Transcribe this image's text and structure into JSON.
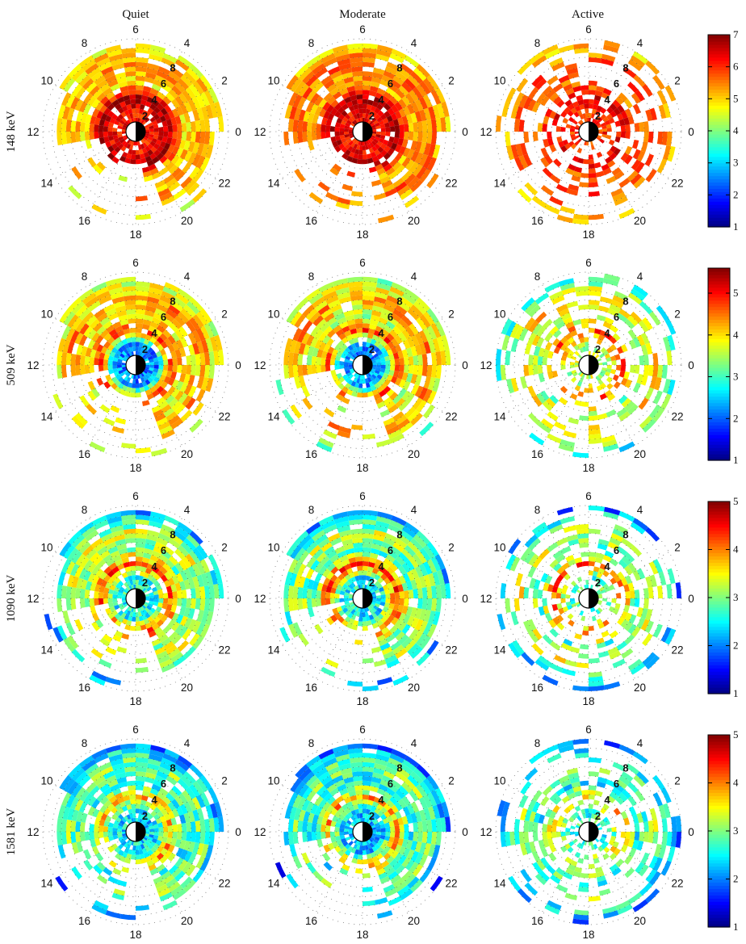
{
  "chart_data": {
    "type": "heatmap",
    "subtype": "polar-grid",
    "columns": [
      "Quiet",
      "Moderate",
      "Active"
    ],
    "rows": [
      "148 keV",
      "509 keV",
      "1090 keV",
      "1581 keV"
    ],
    "mlt_labels": [
      "0",
      "2",
      "4",
      "6",
      "8",
      "10",
      "12",
      "14",
      "16",
      "18",
      "20",
      "22"
    ],
    "mlt_label_positions_deg": [
      0,
      30,
      60,
      90,
      120,
      150,
      180,
      210,
      240,
      270,
      300,
      330
    ],
    "radial_labels": [
      "2",
      "4",
      "6",
      "8"
    ],
    "radial_label_values": [
      2,
      4,
      6,
      8
    ],
    "r_max": 10,
    "grid": "dotted",
    "colormap": "jet",
    "colorbars": [
      {
        "row": "148 keV",
        "min": 1,
        "max": 7,
        "ticks": [
          1,
          2,
          3,
          4,
          5,
          6,
          7
        ]
      },
      {
        "row": "509 keV",
        "min": 1,
        "max": 5.6,
        "ticks": [
          1,
          2,
          3,
          4,
          5
        ]
      },
      {
        "row": "1090 keV",
        "min": 1,
        "max": 5,
        "ticks": [
          1,
          2,
          3,
          4,
          5
        ]
      },
      {
        "row": "1581 keV",
        "min": 1,
        "max": 5,
        "ticks": [
          1,
          2,
          3,
          4,
          5
        ]
      }
    ],
    "panels": [
      {
        "row": "148 keV",
        "column": "Quiet",
        "inner": [
          6.2,
          6.8,
          6.2
        ],
        "outer": [
          4.9,
          5.3,
          4.6
        ],
        "dayside_coverage": "full",
        "nightside_coverage": "sparse"
      },
      {
        "row": "148 keV",
        "column": "Moderate",
        "inner": [
          6.3,
          6.7,
          6.2
        ],
        "outer": [
          5.2,
          5.6,
          4.8
        ],
        "dayside_coverage": "full",
        "nightside_coverage": "sparse"
      },
      {
        "row": "148 keV",
        "column": "Active",
        "inner": [
          6.0,
          6.4,
          5.8
        ],
        "outer": [
          5.6,
          5.9,
          4.8
        ],
        "dayside_coverage": "patchy",
        "nightside_coverage": "patchy"
      },
      {
        "row": "509 keV",
        "column": "Quiet",
        "inner": [
          2.2,
          4.6,
          3.9
        ],
        "outer": [
          3.9,
          4.3,
          3.3
        ],
        "dayside_coverage": "full",
        "nightside_coverage": "sparse"
      },
      {
        "row": "509 keV",
        "column": "Moderate",
        "inner": [
          2.3,
          4.7,
          3.8
        ],
        "outer": [
          3.6,
          4.3,
          3.1
        ],
        "dayside_coverage": "full",
        "nightside_coverage": "sparse"
      },
      {
        "row": "509 keV",
        "column": "Active",
        "inner": [
          3.6,
          4.6,
          3.2
        ],
        "outer": [
          3.4,
          4.0,
          2.6
        ],
        "dayside_coverage": "patchy",
        "nightside_coverage": "patchy"
      },
      {
        "row": "1090 keV",
        "column": "Quiet",
        "inner": [
          2.6,
          4.2,
          3.2
        ],
        "outer": [
          3.0,
          3.3,
          1.8
        ],
        "dayside_coverage": "full",
        "nightside_coverage": "sparse"
      },
      {
        "row": "1090 keV",
        "column": "Moderate",
        "inner": [
          2.5,
          4.3,
          3.0
        ],
        "outer": [
          2.8,
          3.2,
          1.8
        ],
        "dayside_coverage": "full",
        "nightside_coverage": "sparse"
      },
      {
        "row": "1090 keV",
        "column": "Active",
        "inner": [
          2.8,
          4.1,
          2.7
        ],
        "outer": [
          2.8,
          3.4,
          1.8
        ],
        "dayside_coverage": "patchy",
        "nightside_coverage": "patchy"
      },
      {
        "row": "1581 keV",
        "column": "Quiet",
        "inner": [
          2.4,
          3.8,
          2.8
        ],
        "outer": [
          2.6,
          3.0,
          1.6
        ],
        "dayside_coverage": "full",
        "nightside_coverage": "sparse"
      },
      {
        "row": "1581 keV",
        "column": "Moderate",
        "inner": [
          2.3,
          3.8,
          2.6
        ],
        "outer": [
          2.5,
          3.0,
          1.6
        ],
        "dayside_coverage": "full",
        "nightside_coverage": "sparse"
      },
      {
        "row": "1581 keV",
        "column": "Active",
        "inner": [
          2.7,
          3.7,
          2.4
        ],
        "outer": [
          2.6,
          3.1,
          1.8
        ],
        "dayside_coverage": "patchy",
        "nightside_coverage": "patchy"
      }
    ]
  }
}
